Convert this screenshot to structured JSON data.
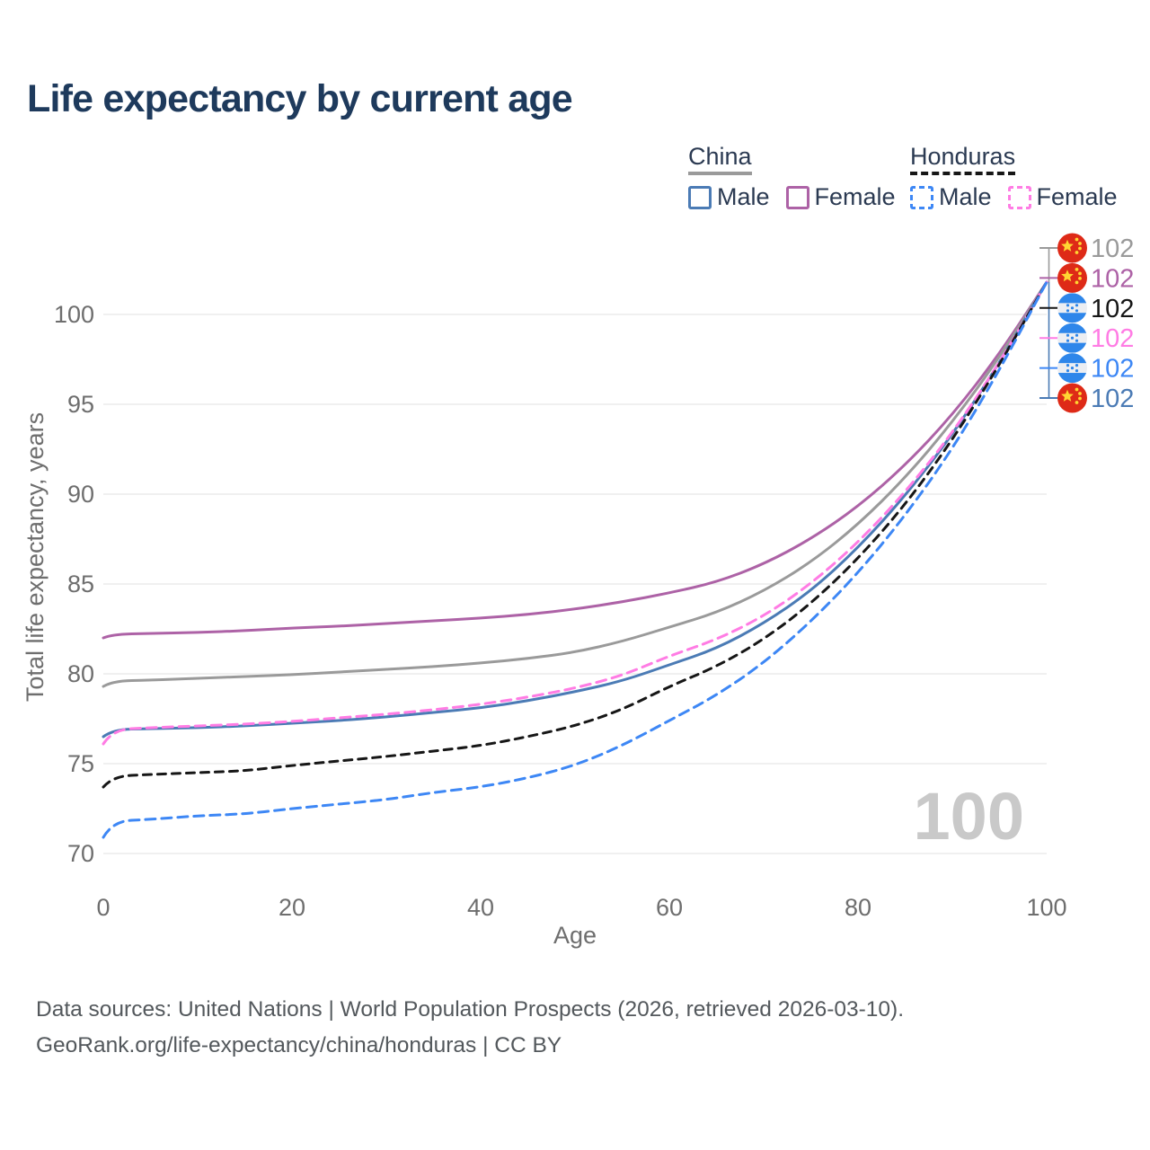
{
  "title": "Life expectancy by current age",
  "legend": {
    "groups": [
      {
        "label": "China",
        "underline_color": "#9a9a9a",
        "underline_dashed": false,
        "items": [
          {
            "label": "Male",
            "color": "#4b7bb5",
            "dashed": false
          },
          {
            "label": "Female",
            "color": "#ad62a6",
            "dashed": false
          }
        ]
      },
      {
        "label": "Honduras",
        "underline_color": "#161616",
        "underline_dashed": true,
        "items": [
          {
            "label": "Male",
            "color": "#3d87f5",
            "dashed": true
          },
          {
            "label": "Female",
            "color": "#ff7ce4",
            "dashed": true
          }
        ]
      }
    ]
  },
  "chart_data": {
    "type": "line",
    "title": "Life expectancy by current age",
    "xlabel": "Age",
    "ylabel": "Total life expectancy, years",
    "xlim": [
      0,
      100
    ],
    "ylim": [
      70,
      102
    ],
    "xticks": [
      0,
      20,
      40,
      60,
      80,
      100
    ],
    "yticks": [
      70,
      75,
      80,
      85,
      90,
      95,
      100
    ],
    "grid": "horizontal",
    "legend_position": "top-right",
    "ages": [
      0,
      1,
      5,
      10,
      15,
      20,
      25,
      30,
      35,
      40,
      45,
      50,
      55,
      60,
      65,
      70,
      75,
      80,
      85,
      90,
      95,
      100
    ],
    "series": [
      {
        "name": "China Female",
        "country": "china",
        "sex": "female",
        "color": "#ad62a6",
        "dash": null,
        "values": [
          82.0,
          82.2,
          82.25,
          82.3,
          82.4,
          82.55,
          82.65,
          82.8,
          82.95,
          83.1,
          83.3,
          83.6,
          84.0,
          84.5,
          85.1,
          86.1,
          87.5,
          89.3,
          91.6,
          94.4,
          97.8,
          101.8
        ]
      },
      {
        "name": "China Both sexes",
        "country": "china",
        "sex": "both",
        "color": "#9a9a9a",
        "dash": null,
        "values": [
          79.3,
          79.6,
          79.65,
          79.75,
          79.85,
          79.95,
          80.1,
          80.25,
          80.4,
          80.6,
          80.85,
          81.2,
          81.8,
          82.6,
          83.4,
          84.6,
          86.2,
          88.3,
          90.9,
          94.0,
          97.6,
          101.8
        ]
      },
      {
        "name": "China Male",
        "country": "china",
        "sex": "male",
        "color": "#4b7bb5",
        "dash": null,
        "values": [
          76.5,
          76.9,
          76.95,
          77.0,
          77.1,
          77.25,
          77.4,
          77.6,
          77.85,
          78.1,
          78.5,
          79.0,
          79.6,
          80.5,
          81.4,
          82.8,
          84.6,
          87.0,
          89.9,
          93.3,
          97.3,
          101.8
        ]
      },
      {
        "name": "Honduras Female",
        "country": "honduras",
        "sex": "female",
        "color": "#ff7ce4",
        "dash": "11 7",
        "values": [
          76.1,
          76.9,
          77.0,
          77.1,
          77.2,
          77.35,
          77.55,
          77.75,
          78.0,
          78.3,
          78.7,
          79.2,
          79.9,
          81.0,
          81.9,
          83.2,
          85.0,
          87.3,
          90.1,
          93.4,
          97.3,
          101.8
        ]
      },
      {
        "name": "Honduras Both sexes",
        "country": "honduras",
        "sex": "both",
        "color": "#161616",
        "dash": "9 7",
        "values": [
          73.7,
          74.3,
          74.4,
          74.5,
          74.6,
          74.9,
          75.15,
          75.4,
          75.7,
          76.0,
          76.5,
          77.1,
          78.0,
          79.3,
          80.4,
          81.9,
          83.9,
          86.4,
          89.4,
          93.0,
          97.2,
          101.8
        ]
      },
      {
        "name": "Honduras Male",
        "country": "honduras",
        "sex": "male",
        "color": "#3d87f5",
        "dash": "11 7",
        "values": [
          70.9,
          71.8,
          71.9,
          72.1,
          72.2,
          72.5,
          72.75,
          73.0,
          73.4,
          73.7,
          74.2,
          74.9,
          76.0,
          77.4,
          78.8,
          80.6,
          82.9,
          85.6,
          88.8,
          92.5,
          96.9,
          101.8
        ]
      }
    ],
    "end_labels": [
      {
        "flag": "china",
        "series": "China Both sexes",
        "color": "#9a9a9a",
        "value": "102"
      },
      {
        "flag": "china",
        "series": "China Female",
        "color": "#ad62a6",
        "value": "102"
      },
      {
        "flag": "honduras",
        "series": "Honduras Both sexes",
        "color": "#161616",
        "value": "102"
      },
      {
        "flag": "honduras",
        "series": "Honduras Female",
        "color": "#ff7ce4",
        "value": "102"
      },
      {
        "flag": "honduras",
        "series": "Honduras Male",
        "color": "#3d87f5",
        "value": "102"
      },
      {
        "flag": "china",
        "series": "China Male",
        "color": "#4b7bb5",
        "value": "102"
      }
    ],
    "age_indicator": "100",
    "colors": {
      "china_flag_red": "#de2a17",
      "china_flag_yellow": "#ffd633",
      "honduras_flag_blue": "#2e86ea",
      "honduras_flag_white": "#eceef2",
      "gridline": "#ececec",
      "tick_text": "#6e6e6e"
    }
  },
  "footer": {
    "line1": "Data sources: United Nations | World Population Prospects (2026, retrieved 2026-03-10).",
    "line2": "GeoRank.org/life-expectancy/china/honduras | CC BY"
  }
}
